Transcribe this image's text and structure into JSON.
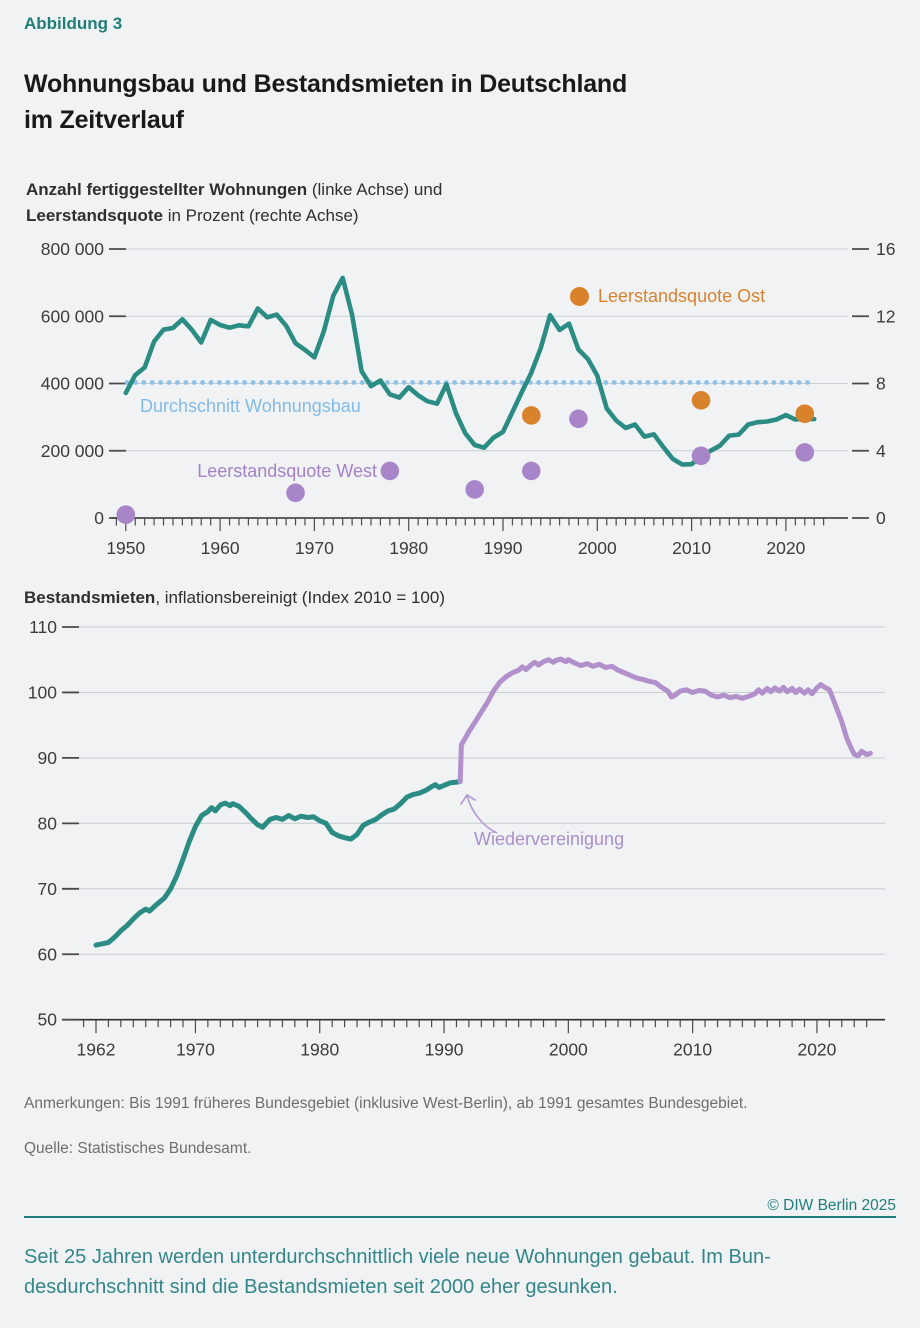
{
  "colors": {
    "teal": "#2b8c84",
    "purple": "#b190cc",
    "purple_dot": "#a884c8",
    "orange": "#d9822c",
    "light_blue": "#8fc2e9",
    "blue_label": "#83bbe7",
    "purple_label": "#a581c5",
    "teal_brand": "#1f7e7a",
    "summary_teal": "#338689",
    "grid": "#cbcfd3",
    "axis": "#2f2f2f",
    "tick": "#4a4a4a",
    "label": "#3c3c3c",
    "note_gray": "#6e6e6e",
    "background": "#f0f2f4",
    "title_color": "#191919"
  },
  "header": {
    "kicker": "Abbildung 3",
    "title_line1": "Wohnungsbau und Bestandsmieten in Deutschland",
    "title_line2": "im Zeitverlauf"
  },
  "chart_data": [
    {
      "type": "line",
      "subtitle": {
        "bold1": "Anzahl fertiggestellter Wohnungen",
        "rest1": " (linke Achse) und",
        "bold2": "Leerstandsquote",
        "rest2": " in Prozent (rechte Achse)"
      },
      "x_axis": {
        "tick_range": [
          1949,
          2024
        ],
        "tick_years_labeled": [
          1950,
          1960,
          1970,
          1980,
          1990,
          2000,
          2010,
          2020
        ]
      },
      "y_left": {
        "range": [
          0,
          800000
        ],
        "label_values": [
          800000,
          600000,
          400000,
          200000,
          0
        ],
        "tick_labels": [
          "800 000",
          "600 000",
          "400 000",
          "200 000",
          "0"
        ]
      },
      "y_right": {
        "range": [
          0,
          16
        ],
        "tick_labels": [
          "16",
          "12",
          "8",
          "4",
          "0"
        ],
        "unit": "Prozent"
      },
      "average_line": {
        "label": "Durchschnitt Wohnungsbau",
        "value": 403000,
        "style": "dotted",
        "color_key": "light_blue"
      },
      "series": [
        {
          "name": "Anzahl fertiggestellter Wohnungen",
          "axis": "left",
          "color_key": "teal",
          "points": [
            [
              1950,
              372000
            ],
            [
              1951,
              425000
            ],
            [
              1952,
              448000
            ],
            [
              1953,
              525000
            ],
            [
              1954,
              560000
            ],
            [
              1955,
              565000
            ],
            [
              1956,
              591000
            ],
            [
              1957,
              560000
            ],
            [
              1958,
              522000
            ],
            [
              1959,
              589000
            ],
            [
              1960,
              574000
            ],
            [
              1961,
              566000
            ],
            [
              1962,
              573000
            ],
            [
              1963,
              570000
            ],
            [
              1964,
              623000
            ],
            [
              1965,
              597000
            ],
            [
              1966,
              605000
            ],
            [
              1967,
              572000
            ],
            [
              1968,
              520000
            ],
            [
              1969,
              500000
            ],
            [
              1970,
              478000
            ],
            [
              1971,
              555000
            ],
            [
              1972,
              661000
            ],
            [
              1973,
              714000
            ],
            [
              1974,
              604000
            ],
            [
              1975,
              437000
            ],
            [
              1976,
              392000
            ],
            [
              1977,
              409000
            ],
            [
              1978,
              368000
            ],
            [
              1979,
              358000
            ],
            [
              1980,
              389000
            ],
            [
              1981,
              365000
            ],
            [
              1982,
              347000
            ],
            [
              1983,
              340000
            ],
            [
              1984,
              398000
            ],
            [
              1985,
              312000
            ],
            [
              1986,
              252000
            ],
            [
              1987,
              217000
            ],
            [
              1988,
              209000
            ],
            [
              1989,
              239000
            ],
            [
              1990,
              256000
            ],
            [
              1991,
              315000
            ],
            [
              1992,
              375000
            ],
            [
              1993,
              432000
            ],
            [
              1994,
              505000
            ],
            [
              1995,
              603000
            ],
            [
              1996,
              559000
            ],
            [
              1997,
              578000
            ],
            [
              1998,
              501000
            ],
            [
              1999,
              473000
            ],
            [
              2000,
              423000
            ],
            [
              2001,
              326000
            ],
            [
              2002,
              290000
            ],
            [
              2003,
              268000
            ],
            [
              2004,
              278000
            ],
            [
              2005,
              242000
            ],
            [
              2006,
              249000
            ],
            [
              2007,
              211000
            ],
            [
              2008,
              176000
            ],
            [
              2009,
              159000
            ],
            [
              2010,
              160000
            ],
            [
              2011,
              183000
            ],
            [
              2012,
              200000
            ],
            [
              2013,
              215000
            ],
            [
              2014,
              245000
            ],
            [
              2015,
              248000
            ],
            [
              2016,
              278000
            ],
            [
              2017,
              285000
            ],
            [
              2018,
              287000
            ],
            [
              2019,
              293000
            ],
            [
              2020,
              306000
            ],
            [
              2021,
              293000
            ],
            [
              2022,
              295000
            ],
            [
              2023,
              294000
            ]
          ]
        }
      ],
      "scatter": [
        {
          "name": "Leerstandsquote West",
          "axis": "right",
          "color_key": "purple_dot",
          "points": [
            [
              1950,
              0.2
            ],
            [
              1968,
              1.5
            ],
            [
              1978,
              2.8
            ],
            [
              1987,
              1.7
            ],
            [
              1993,
              2.8
            ],
            [
              1998,
              5.9
            ],
            [
              2011,
              3.7
            ],
            [
              2022,
              3.9
            ]
          ]
        },
        {
          "name": "Leerstandsquote Ost",
          "axis": "right",
          "color_key": "orange",
          "points": [
            [
              1993,
              6.1
            ],
            [
              2011,
              7.0
            ],
            [
              2022,
              6.2
            ]
          ]
        }
      ]
    },
    {
      "type": "line",
      "title": {
        "bold": "Bestandsmieten",
        "rest": ", inflationsbereinigt (Index 2010 = 100)"
      },
      "x_axis": {
        "tick_range": [
          1961,
          2024
        ],
        "tick_years_labeled": [
          1962,
          1970,
          1980,
          1990,
          2000,
          2010,
          2020
        ]
      },
      "y_axis": {
        "range": [
          50,
          110
        ],
        "ticks": [
          110,
          100,
          90,
          80,
          70,
          60,
          50
        ]
      },
      "annotation": {
        "label": "Wiedervereinigung",
        "x": 1991.3
      },
      "series": [
        {
          "name": "Frueheres Bundesgebiet",
          "color_key": "teal",
          "points": [
            [
              1962,
              61.4
            ],
            [
              1962.5,
              61.6
            ],
            [
              1963,
              61.8
            ],
            [
              1963.5,
              62.6
            ],
            [
              1964,
              63.6
            ],
            [
              1964.5,
              64.4
            ],
            [
              1965,
              65.4
            ],
            [
              1965.5,
              66.3
            ],
            [
              1966,
              66.9
            ],
            [
              1966.3,
              66.6
            ],
            [
              1966.7,
              67.3
            ],
            [
              1967,
              67.8
            ],
            [
              1967.5,
              68.6
            ],
            [
              1968,
              70.0
            ],
            [
              1968.5,
              72.0
            ],
            [
              1969,
              74.5
            ],
            [
              1969.5,
              77.2
            ],
            [
              1970,
              79.5
            ],
            [
              1970.5,
              81.2
            ],
            [
              1971,
              81.8
            ],
            [
              1971.3,
              82.4
            ],
            [
              1971.6,
              81.9
            ],
            [
              1972,
              82.8
            ],
            [
              1972.4,
              83.1
            ],
            [
              1972.8,
              82.7
            ],
            [
              1973,
              83.0
            ],
            [
              1973.5,
              82.6
            ],
            [
              1974,
              81.7
            ],
            [
              1974.5,
              80.7
            ],
            [
              1975,
              79.8
            ],
            [
              1975.4,
              79.4
            ],
            [
              1975.8,
              80.2
            ],
            [
              1976,
              80.6
            ],
            [
              1976.5,
              80.9
            ],
            [
              1977,
              80.6
            ],
            [
              1977.5,
              81.2
            ],
            [
              1978,
              80.7
            ],
            [
              1978.5,
              81.1
            ],
            [
              1979,
              80.9
            ],
            [
              1979.5,
              81.0
            ],
            [
              1980,
              80.4
            ],
            [
              1980.5,
              80.0
            ],
            [
              1981,
              78.6
            ],
            [
              1981.5,
              78.1
            ],
            [
              1982,
              77.8
            ],
            [
              1982.5,
              77.6
            ],
            [
              1983,
              78.3
            ],
            [
              1983.5,
              79.7
            ],
            [
              1984,
              80.2
            ],
            [
              1984.5,
              80.6
            ],
            [
              1985,
              81.3
            ],
            [
              1985.5,
              81.9
            ],
            [
              1986,
              82.2
            ],
            [
              1986.5,
              83.0
            ],
            [
              1987,
              84.0
            ],
            [
              1987.5,
              84.4
            ],
            [
              1988,
              84.6
            ],
            [
              1988.5,
              85.0
            ],
            [
              1989,
              85.6
            ],
            [
              1989.3,
              85.9
            ],
            [
              1989.6,
              85.5
            ],
            [
              1990,
              85.8
            ],
            [
              1990.5,
              86.2
            ],
            [
              1991,
              86.3
            ],
            [
              1991.3,
              86.4
            ]
          ]
        },
        {
          "name": "Gesamtes Bundesgebiet",
          "color_key": "purple",
          "points": [
            [
              1991.3,
              86.4
            ],
            [
              1991.4,
              92.0
            ],
            [
              1991.7,
              93.0
            ],
            [
              1992,
              94.0
            ],
            [
              1992.5,
              95.5
            ],
            [
              1993,
              97.0
            ],
            [
              1993.5,
              98.5
            ],
            [
              1994,
              100.3
            ],
            [
              1994.5,
              101.6
            ],
            [
              1995,
              102.4
            ],
            [
              1995.5,
              103.0
            ],
            [
              1996,
              103.4
            ],
            [
              1996.3,
              103.9
            ],
            [
              1996.6,
              103.5
            ],
            [
              1997,
              104.2
            ],
            [
              1997.3,
              104.6
            ],
            [
              1997.6,
              104.2
            ],
            [
              1998,
              104.7
            ],
            [
              1998.4,
              105.0
            ],
            [
              1998.8,
              104.6
            ],
            [
              1999,
              104.9
            ],
            [
              1999.4,
              105.1
            ],
            [
              1999.8,
              104.7
            ],
            [
              2000,
              105.0
            ],
            [
              2000.5,
              104.5
            ],
            [
              2001,
              104.1
            ],
            [
              2001.5,
              104.4
            ],
            [
              2002,
              104.0
            ],
            [
              2002.5,
              104.3
            ],
            [
              2003,
              103.8
            ],
            [
              2003.5,
              104.0
            ],
            [
              2004,
              103.4
            ],
            [
              2004.5,
              103.0
            ],
            [
              2005,
              102.6
            ],
            [
              2005.5,
              102.2
            ],
            [
              2006,
              102.0
            ],
            [
              2006.5,
              101.7
            ],
            [
              2007,
              101.5
            ],
            [
              2007.5,
              100.8
            ],
            [
              2008,
              100.2
            ],
            [
              2008.3,
              99.3
            ],
            [
              2008.6,
              99.6
            ],
            [
              2009,
              100.2
            ],
            [
              2009.5,
              100.4
            ],
            [
              2010,
              100.0
            ],
            [
              2010.5,
              100.3
            ],
            [
              2011,
              100.2
            ],
            [
              2011.5,
              99.6
            ],
            [
              2012,
              99.3
            ],
            [
              2012.5,
              99.6
            ],
            [
              2013,
              99.2
            ],
            [
              2013.5,
              99.4
            ],
            [
              2014,
              99.1
            ],
            [
              2014.5,
              99.4
            ],
            [
              2015,
              99.8
            ],
            [
              2015.3,
              100.4
            ],
            [
              2015.6,
              99.9
            ],
            [
              2016,
              100.6
            ],
            [
              2016.3,
              100.1
            ],
            [
              2016.6,
              100.7
            ],
            [
              2017,
              100.2
            ],
            [
              2017.3,
              100.8
            ],
            [
              2017.6,
              100.1
            ],
            [
              2018,
              100.6
            ],
            [
              2018.3,
              100.0
            ],
            [
              2018.6,
              100.5
            ],
            [
              2019,
              99.9
            ],
            [
              2019.3,
              100.4
            ],
            [
              2019.6,
              99.8
            ],
            [
              2020,
              100.7
            ],
            [
              2020.3,
              101.2
            ],
            [
              2020.6,
              100.8
            ],
            [
              2021,
              100.4
            ],
            [
              2021.3,
              99.0
            ],
            [
              2021.6,
              97.5
            ],
            [
              2022,
              95.5
            ],
            [
              2022.4,
              93.0
            ],
            [
              2022.8,
              91.3
            ],
            [
              2023,
              90.6
            ],
            [
              2023.3,
              90.3
            ],
            [
              2023.6,
              91.0
            ],
            [
              2024,
              90.5
            ],
            [
              2024.3,
              90.7
            ]
          ]
        }
      ]
    }
  ],
  "footer": {
    "notes": "Anmerkungen: Bis 1991 früheres Bundesgebiet (inklusive West-Berlin), ab 1991 gesamtes Bundesgebiet.",
    "source": "Quelle: Statistisches Bundesamt.",
    "copyright": "© DIW Berlin 2025",
    "summary_line1": "Seit 25 Jahren werden unterdurchschnittlich viele neue Wohnungen gebaut. Im Bun-",
    "summary_line2": "desdurchschnitt sind die Bestandsmieten seit 2000 eher gesunken."
  }
}
